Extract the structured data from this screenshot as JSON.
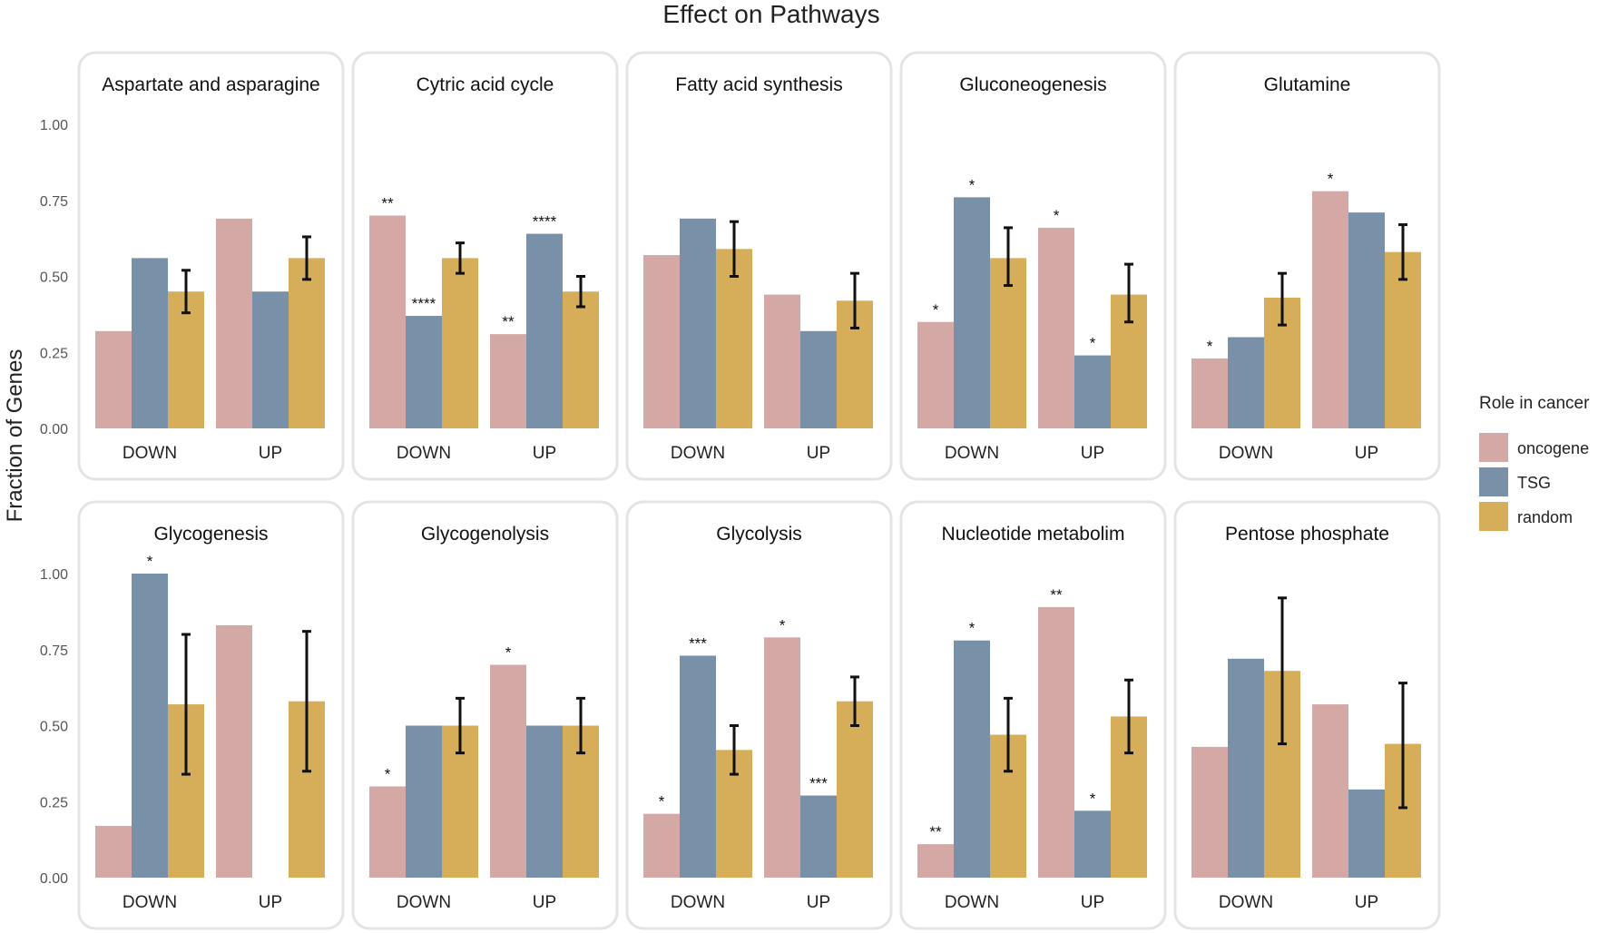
{
  "colors": {
    "oncogene": "#d4a8a4",
    "TSG": "#7890a8",
    "random": "#d6ae5a",
    "panel_border": "#e4e4e4",
    "errorbar": "#111111"
  },
  "chart_data": {
    "type": "bar",
    "title": "Effect on Pathways",
    "ylabel": "Fraction of Genes",
    "ylim": [
      0,
      1.1
    ],
    "yticks": [
      0,
      0.25,
      0.5,
      0.75,
      1.0
    ],
    "ytick_labels": [
      "0.00",
      "0.25",
      "0.50",
      "0.75",
      "1.00"
    ],
    "categories": [
      "DOWN",
      "UP"
    ],
    "legend": {
      "title": "Role in cancer",
      "position": "right",
      "entries": [
        "oncogene",
        "TSG",
        "random"
      ]
    },
    "panels": [
      {
        "name": "Aspartate and asparagine",
        "groups": [
          {
            "x": "DOWN",
            "oncogene": 0.32,
            "TSG": 0.56,
            "random": 0.45,
            "random_err": [
              0.38,
              0.52
            ],
            "sig": {
              "oncogene": "",
              "TSG": ""
            }
          },
          {
            "x": "UP",
            "oncogene": 0.69,
            "TSG": 0.45,
            "random": 0.56,
            "random_err": [
              0.49,
              0.63
            ],
            "sig": {
              "oncogene": "",
              "TSG": ""
            }
          }
        ]
      },
      {
        "name": "Cytric acid cycle",
        "groups": [
          {
            "x": "DOWN",
            "oncogene": 0.7,
            "TSG": 0.37,
            "random": 0.56,
            "random_err": [
              0.51,
              0.61
            ],
            "sig": {
              "oncogene": "**",
              "TSG": "****"
            }
          },
          {
            "x": "UP",
            "oncogene": 0.31,
            "TSG": 0.64,
            "random": 0.45,
            "random_err": [
              0.4,
              0.5
            ],
            "sig": {
              "oncogene": "**",
              "TSG": "****"
            }
          }
        ]
      },
      {
        "name": "Fatty acid synthesis",
        "groups": [
          {
            "x": "DOWN",
            "oncogene": 0.57,
            "TSG": 0.69,
            "random": 0.59,
            "random_err": [
              0.5,
              0.68
            ],
            "sig": {
              "oncogene": "",
              "TSG": ""
            }
          },
          {
            "x": "UP",
            "oncogene": 0.44,
            "TSG": 0.32,
            "random": 0.42,
            "random_err": [
              0.33,
              0.51
            ],
            "sig": {
              "oncogene": "",
              "TSG": ""
            }
          }
        ]
      },
      {
        "name": "Gluconeogenesis",
        "groups": [
          {
            "x": "DOWN",
            "oncogene": 0.35,
            "TSG": 0.76,
            "random": 0.56,
            "random_err": [
              0.47,
              0.66
            ],
            "sig": {
              "oncogene": "*",
              "TSG": "*"
            }
          },
          {
            "x": "UP",
            "oncogene": 0.66,
            "TSG": 0.24,
            "random": 0.44,
            "random_err": [
              0.35,
              0.54
            ],
            "sig": {
              "oncogene": "*",
              "TSG": "*"
            }
          }
        ]
      },
      {
        "name": "Glutamine",
        "groups": [
          {
            "x": "DOWN",
            "oncogene": 0.23,
            "TSG": 0.3,
            "random": 0.43,
            "random_err": [
              0.34,
              0.51
            ],
            "sig": {
              "oncogene": "*",
              "TSG": ""
            }
          },
          {
            "x": "UP",
            "oncogene": 0.78,
            "TSG": 0.71,
            "random": 0.58,
            "random_err": [
              0.49,
              0.67
            ],
            "sig": {
              "oncogene": "*",
              "TSG": ""
            }
          }
        ]
      },
      {
        "name": "Glycogenesis",
        "groups": [
          {
            "x": "DOWN",
            "oncogene": 0.17,
            "TSG": 1.0,
            "random": 0.57,
            "random_err": [
              0.34,
              0.8
            ],
            "sig": {
              "oncogene": "",
              "TSG": "*"
            }
          },
          {
            "x": "UP",
            "oncogene": 0.83,
            "TSG": 0,
            "random": 0.58,
            "random_err": [
              0.35,
              0.81
            ],
            "sig": {
              "oncogene": "",
              "TSG": ""
            }
          }
        ]
      },
      {
        "name": "Glycogenolysis",
        "groups": [
          {
            "x": "DOWN",
            "oncogene": 0.3,
            "TSG": 0.5,
            "random": 0.5,
            "random_err": [
              0.41,
              0.59
            ],
            "sig": {
              "oncogene": "*",
              "TSG": ""
            }
          },
          {
            "x": "UP",
            "oncogene": 0.7,
            "TSG": 0.5,
            "random": 0.5,
            "random_err": [
              0.41,
              0.59
            ],
            "sig": {
              "oncogene": "*",
              "TSG": ""
            }
          }
        ]
      },
      {
        "name": "Glycolysis",
        "groups": [
          {
            "x": "DOWN",
            "oncogene": 0.21,
            "TSG": 0.73,
            "random": 0.42,
            "random_err": [
              0.34,
              0.5
            ],
            "sig": {
              "oncogene": "*",
              "TSG": "***"
            }
          },
          {
            "x": "UP",
            "oncogene": 0.79,
            "TSG": 0.27,
            "random": 0.58,
            "random_err": [
              0.5,
              0.66
            ],
            "sig": {
              "oncogene": "*",
              "TSG": "***"
            }
          }
        ]
      },
      {
        "name": "Nucleotide metabolim",
        "groups": [
          {
            "x": "DOWN",
            "oncogene": 0.11,
            "TSG": 0.78,
            "random": 0.47,
            "random_err": [
              0.35,
              0.59
            ],
            "sig": {
              "oncogene": "**",
              "TSG": "*"
            }
          },
          {
            "x": "UP",
            "oncogene": 0.89,
            "TSG": 0.22,
            "random": 0.53,
            "random_err": [
              0.41,
              0.65
            ],
            "sig": {
              "oncogene": "**",
              "TSG": "*"
            }
          }
        ]
      },
      {
        "name": "Pentose phosphate",
        "groups": [
          {
            "x": "DOWN",
            "oncogene": 0.43,
            "TSG": 0.72,
            "random": 0.68,
            "random_err": [
              0.44,
              0.92
            ],
            "sig": {
              "oncogene": "",
              "TSG": ""
            }
          },
          {
            "x": "UP",
            "oncogene": 0.57,
            "TSG": 0.29,
            "random": 0.44,
            "random_err": [
              0.23,
              0.64
            ],
            "sig": {
              "oncogene": "",
              "TSG": ""
            }
          }
        ]
      }
    ]
  }
}
